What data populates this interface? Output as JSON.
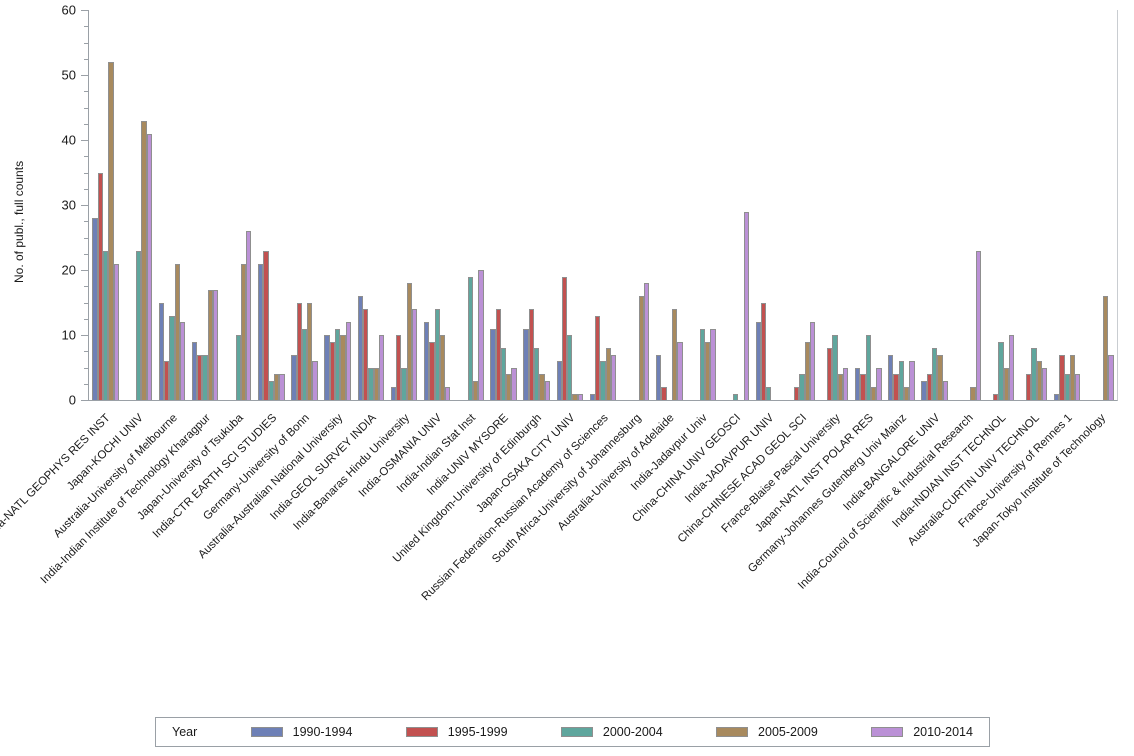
{
  "figure": {
    "ylabel": "No. of publ., full counts",
    "legend_title": "Year"
  },
  "chart_data": {
    "type": "bar",
    "title": "",
    "xlabel": "",
    "ylabel": "No. of publ., full counts",
    "ylim": [
      0,
      60
    ],
    "ytick_major_interval": 10,
    "ytick_minor_interval": 2.5,
    "grid": false,
    "legend_position": "bottom",
    "legend_title": "Year",
    "categories": [
      "India-NATL GEOPHYS RES INST",
      "Japan-KOCHI UNIV",
      "Australia-University of Melbourne",
      "India-Indian Institute of Technology Kharagpur",
      "Japan-University of Tsukuba",
      "India-CTR EARTH SCI STUDIES",
      "Germany-University of Bonn",
      "Australia-Australian National University",
      "India-GEOL SURVEY INDIA",
      "India-Banaras Hindu University",
      "India-OSMANIA UNIV",
      "India-Indian Stat Inst",
      "India-UNIV MYSORE",
      "United Kingdom-University of Edinburgh",
      "Japan-OSAKA CITY UNIV",
      "Russian Federation-Russian Academy of Sciences",
      "South Africa-University of Johannesburg",
      "Australia-University of Adelaide",
      "India-Jadavpur Univ",
      "China-CHINA UNIV GEOSCI",
      "India-JADAVPUR UNIV",
      "China-CHINESE ACAD GEOL SCI",
      "France-Blaise Pascal University",
      "Japan-NATL INST POLAR RES",
      "Germany-Johannes Gutenberg Univ Mainz",
      "India-BANGALORE UNIV",
      "India-Council of Scientific & Industrial Research",
      "India-INDIAN INST TECHNOL",
      "Australia-CURTIN UNIV TECHNOL",
      "France-University of Rennes 1",
      "Japan-Tokyo Institute of Technology"
    ],
    "series": [
      {
        "name": "1990-1994",
        "color": "#6e80b6",
        "values": [
          28,
          0,
          15,
          9,
          0,
          21,
          7,
          10,
          16,
          2,
          12,
          0,
          11,
          11,
          6,
          1,
          0,
          7,
          0,
          0,
          12,
          0,
          0,
          5,
          7,
          3,
          0,
          0,
          0,
          1,
          0
        ]
      },
      {
        "name": "1995-1999",
        "color": "#c25150",
        "values": [
          35,
          0,
          6,
          7,
          0,
          23,
          15,
          9,
          14,
          10,
          9,
          0,
          14,
          14,
          19,
          13,
          0,
          2,
          0,
          0,
          15,
          2,
          8,
          4,
          4,
          4,
          0,
          1,
          4,
          7,
          0
        ]
      },
      {
        "name": "2000-2004",
        "color": "#5fa69d",
        "values": [
          23,
          23,
          13,
          7,
          10,
          3,
          11,
          11,
          5,
          5,
          14,
          19,
          8,
          8,
          10,
          6,
          0,
          0,
          11,
          1,
          2,
          4,
          10,
          10,
          6,
          8,
          0,
          9,
          8,
          4,
          0
        ]
      },
      {
        "name": "2005-2009",
        "color": "#a88a5e",
        "values": [
          52,
          43,
          21,
          17,
          21,
          4,
          15,
          10,
          5,
          18,
          10,
          3,
          4,
          4,
          1,
          8,
          16,
          14,
          9,
          0,
          0,
          9,
          4,
          2,
          2,
          7,
          2,
          5,
          6,
          7,
          16
        ]
      },
      {
        "name": "2010-2014",
        "color": "#bb91d6",
        "values": [
          21,
          41,
          12,
          17,
          26,
          4,
          6,
          12,
          10,
          14,
          2,
          20,
          5,
          3,
          1,
          7,
          18,
          9,
          11,
          29,
          0,
          12,
          5,
          5,
          6,
          3,
          23,
          10,
          5,
          4,
          7
        ]
      }
    ],
    "ytick_labels": [
      "0",
      "10",
      "20",
      "30",
      "40",
      "50",
      "60"
    ]
  },
  "style_colors": {
    "axis": "#9aa0a6",
    "bar_border": "#8f8f8f",
    "text": "#1a1a1a"
  }
}
